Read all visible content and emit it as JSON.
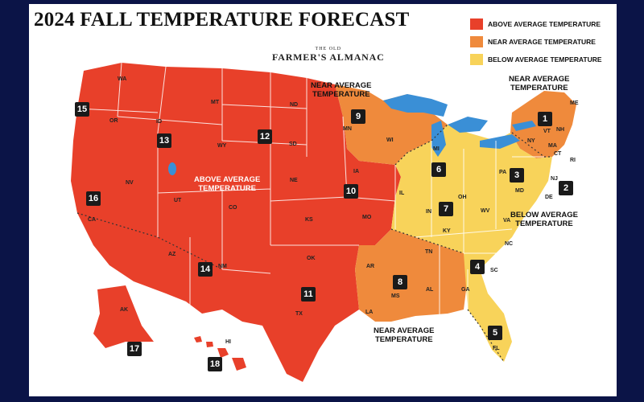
{
  "title": "2024 FALL TEMPERATURE FORECAST",
  "legend": [
    {
      "label": "ABOVE AVERAGE TEMPERATURE",
      "color": "#e8402a"
    },
    {
      "label": "NEAR AVERAGE TEMPERATURE",
      "color": "#ef8a3c"
    },
    {
      "label": "BELOW AVERAGE TEMPERATURE",
      "color": "#f8d35a"
    }
  ],
  "brand": {
    "small": "THE OLD",
    "big": "FARMER'S ALMANAC"
  },
  "colors": {
    "above": "#e8402a",
    "near": "#ef8a3c",
    "below": "#f8d35a",
    "water": "#3a8fd6",
    "border": "#ffffff"
  },
  "zone_labels": [
    {
      "text": "NEAR AVERAGE\nTEMPERATURE"
    },
    {
      "text": "NEAR AVERAGE\nTEMPERATURE"
    },
    {
      "text": "ABOVE AVERAGE\nTEMPERATURE"
    },
    {
      "text": "BELOW AVERAGE\nTEMPERATURE"
    },
    {
      "text": "NEAR AVERAGE\nTEMPERATURE"
    }
  ],
  "regions": [
    "1",
    "2",
    "3",
    "4",
    "5",
    "6",
    "7",
    "8",
    "9",
    "10",
    "11",
    "12",
    "13",
    "14",
    "15",
    "16",
    "17",
    "18"
  ],
  "states": [
    "WA",
    "OR",
    "ID",
    "MT",
    "WY",
    "ND",
    "SD",
    "MN",
    "WI",
    "NE",
    "IA",
    "NV",
    "UT",
    "CO",
    "KS",
    "MO",
    "IL",
    "MI",
    "IN",
    "OH",
    "PA",
    "NY",
    "VT",
    "NH",
    "ME",
    "MA",
    "CT",
    "RI",
    "NJ",
    "MD",
    "DE",
    "WV",
    "VA",
    "KY",
    "TN",
    "NC",
    "SC",
    "GA",
    "AL",
    "MS",
    "AR",
    "LA",
    "OK",
    "TX",
    "NM",
    "AZ",
    "CA",
    "FL",
    "AK",
    "HI"
  ]
}
